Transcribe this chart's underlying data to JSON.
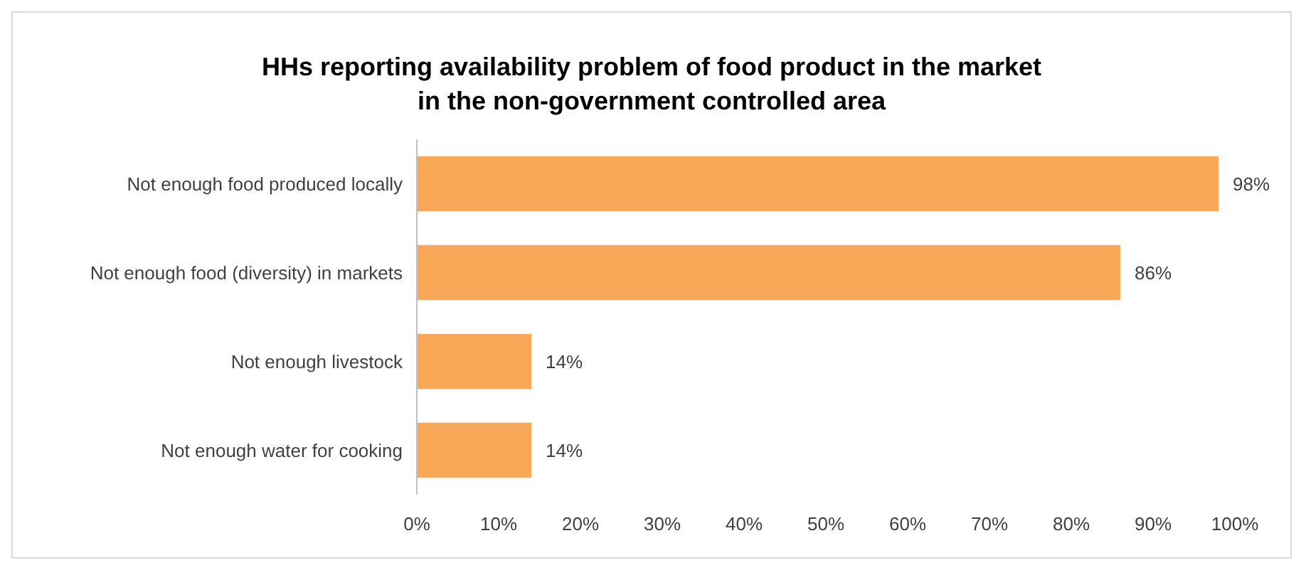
{
  "chart_data": {
    "type": "bar",
    "orientation": "horizontal",
    "title": "HHs reporting availability problem of food product in the market\nin the non-government controlled area",
    "categories": [
      "Not enough food produced locally",
      "Not enough food (diversity) in markets",
      "Not enough livestock",
      "Not enough water for cooking"
    ],
    "values": [
      98,
      86,
      14,
      14
    ],
    "value_labels": [
      "98%",
      "86%",
      "14%",
      "14%"
    ],
    "color": "#f9a857",
    "xlim": [
      0,
      100
    ],
    "xticks": [
      {
        "value": 0,
        "label": "0%"
      },
      {
        "value": 10,
        "label": "10%"
      },
      {
        "value": 20,
        "label": "20%"
      },
      {
        "value": 30,
        "label": "30%"
      },
      {
        "value": 40,
        "label": "40%"
      },
      {
        "value": 50,
        "label": "50%"
      },
      {
        "value": 60,
        "label": "60%"
      },
      {
        "value": 70,
        "label": "70%"
      },
      {
        "value": 80,
        "label": "80%"
      },
      {
        "value": 90,
        "label": "90%"
      },
      {
        "value": 100,
        "label": "100%"
      }
    ],
    "grid": false
  }
}
